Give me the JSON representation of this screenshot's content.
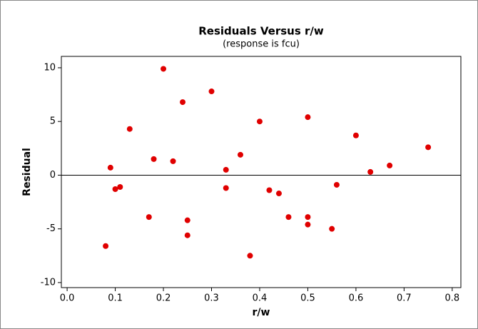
{
  "chart_data": {
    "type": "scatter",
    "title": "Residuals Versus r/w",
    "subtitle": "(response is fcu)",
    "x_label": "r/w",
    "y_label": "Residual",
    "x": [
      0.08,
      0.09,
      0.1,
      0.11,
      0.13,
      0.17,
      0.18,
      0.2,
      0.22,
      0.24,
      0.25,
      0.25,
      0.3,
      0.33,
      0.33,
      0.36,
      0.38,
      0.4,
      0.42,
      0.44,
      0.46,
      0.5,
      0.5,
      0.5,
      0.55,
      0.56,
      0.6,
      0.63,
      0.67,
      0.75
    ],
    "values": [
      -6.6,
      0.7,
      -1.3,
      -1.1,
      4.3,
      -3.9,
      1.5,
      9.9,
      1.3,
      6.8,
      -4.2,
      -5.6,
      7.8,
      0.5,
      -1.2,
      1.9,
      -7.5,
      5.0,
      -1.4,
      -1.7,
      -3.9,
      5.4,
      -3.9,
      -4.6,
      -5.0,
      -0.9,
      3.7,
      0.3,
      0.9,
      2.6
    ],
    "color": "#e00000",
    "xlim": [
      -0.012,
      0.818
    ],
    "xticks": [
      {
        "value": 0,
        "label": "0.0"
      },
      0.1,
      0.2,
      0.3,
      0.4,
      0.5,
      0.6,
      0.7,
      0.8
    ],
    "ylim": [
      -10.47,
      11.06
    ],
    "yticks": [
      -10,
      -5,
      0,
      5,
      10
    ],
    "reference_line": 0
  }
}
